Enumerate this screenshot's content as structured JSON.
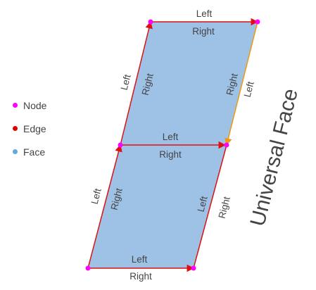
{
  "legend": {
    "items": [
      {
        "label": "Node",
        "color": "#ff00ff"
      },
      {
        "label": "Edge",
        "color": "#dd0000"
      },
      {
        "label": "Face",
        "color": "#66a8d8"
      }
    ]
  },
  "universal_face_label": "Universal Face",
  "colors": {
    "face_fill": "#9ec1e6",
    "edge": "#dd1111",
    "node": "#ff00ff",
    "highlight_edge": "#ee9911"
  },
  "edge_labels": {
    "left": "Left",
    "right": "Right"
  }
}
